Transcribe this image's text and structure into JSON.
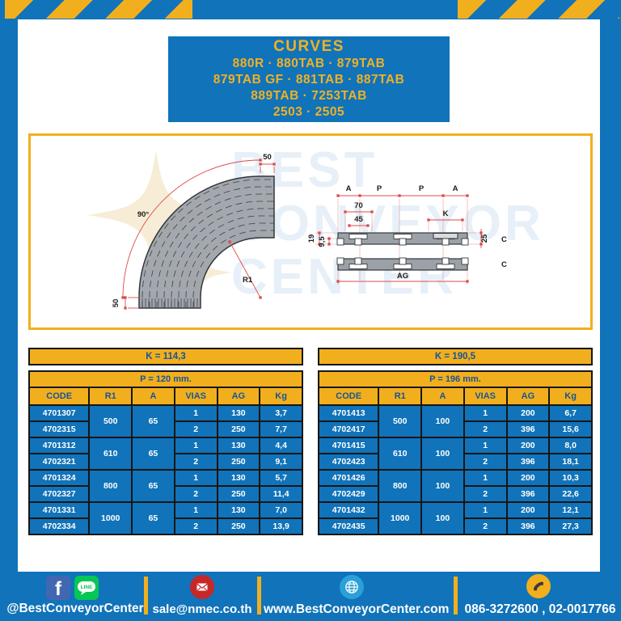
{
  "colors": {
    "blue": "#1173b9",
    "gold": "#f2af1d",
    "header_text_blue": "#15549c",
    "dim_red": "#dd4b4b",
    "profile_gray": "#9ba1a7",
    "line_green": "#06c755",
    "facebook_blue": "#4267b2",
    "mail_red": "#c62828",
    "globe_blue": "#2ba0d8"
  },
  "title": {
    "heading": "CURVES",
    "lines": [
      "880R · 880TAB · 879TAB",
      "879TAB GF · 881TAB · 887TAB",
      "889TAB · 7253TAB",
      "2503 · 2505"
    ]
  },
  "watermark": {
    "lines": [
      "BEST",
      "CONVEYOR",
      "CENTER"
    ]
  },
  "drawing": {
    "curve": {
      "top_dim": "50",
      "left_dim": "50",
      "angle_label": "90°",
      "radius_label": "R1"
    },
    "section": {
      "a1": "A",
      "p1": "P",
      "p2": "P",
      "a2": "A",
      "d70": "70",
      "d45": "45",
      "k": "K",
      "d19": "19",
      "d9_5": "9,5",
      "d25": "25",
      "c_top": "C",
      "c_bottom": "C",
      "ag": "AG"
    }
  },
  "tables": [
    {
      "k_label": "K = 114,3",
      "p_label": "P = 120 mm.",
      "columns": [
        "CODE",
        "R1",
        "A",
        "VIAS",
        "AG",
        "Kg"
      ],
      "groups": [
        {
          "r1": "500",
          "a": "65",
          "rows": [
            [
              "4701307",
              "1",
              "130",
              "3,7"
            ],
            [
              "4702315",
              "2",
              "250",
              "7,7"
            ]
          ]
        },
        {
          "r1": "610",
          "a": "65",
          "rows": [
            [
              "4701312",
              "1",
              "130",
              "4,4"
            ],
            [
              "4702321",
              "2",
              "250",
              "9,1"
            ]
          ]
        },
        {
          "r1": "800",
          "a": "65",
          "rows": [
            [
              "4701324",
              "1",
              "130",
              "5,7"
            ],
            [
              "4702327",
              "2",
              "250",
              "11,4"
            ]
          ]
        },
        {
          "r1": "1000",
          "a": "65",
          "rows": [
            [
              "4701331",
              "1",
              "130",
              "7,0"
            ],
            [
              "4702334",
              "2",
              "250",
              "13,9"
            ]
          ]
        }
      ]
    },
    {
      "k_label": "K = 190,5",
      "p_label": "P = 196 mm.",
      "columns": [
        "CODE",
        "R1",
        "A",
        "VIAS",
        "AG",
        "Kg"
      ],
      "groups": [
        {
          "r1": "500",
          "a": "100",
          "rows": [
            [
              "4701413",
              "1",
              "200",
              "6,7"
            ],
            [
              "4702417",
              "2",
              "396",
              "15,6"
            ]
          ]
        },
        {
          "r1": "610",
          "a": "100",
          "rows": [
            [
              "4701415",
              "1",
              "200",
              "8,0"
            ],
            [
              "4702423",
              "2",
              "396",
              "18,1"
            ]
          ]
        },
        {
          "r1": "800",
          "a": "100",
          "rows": [
            [
              "4701426",
              "1",
              "200",
              "10,3"
            ],
            [
              "4702429",
              "2",
              "396",
              "22,6"
            ]
          ]
        },
        {
          "r1": "1000",
          "a": "100",
          "rows": [
            [
              "4701432",
              "1",
              "200",
              "12,1"
            ],
            [
              "4702435",
              "2",
              "396",
              "27,3"
            ]
          ]
        }
      ]
    }
  ],
  "footer": {
    "facebook_letter": "f",
    "line_icon_label": "LINE",
    "facebook_handle": "@BestConveyorCenter",
    "email": "sale@nmec.co.th",
    "website": "www.BestConveyorCenter.com",
    "phone_numbers": "086-3272600 , 02-0017766"
  }
}
